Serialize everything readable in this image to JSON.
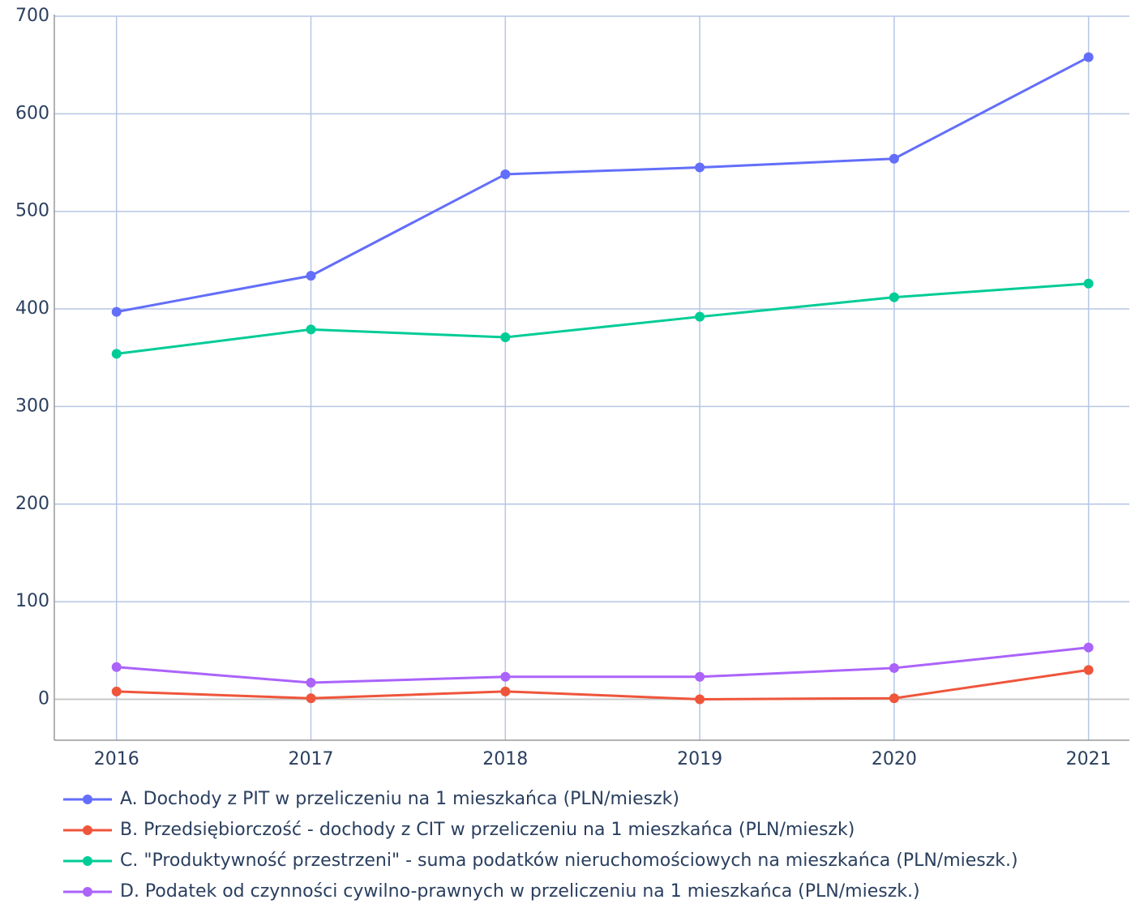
{
  "chart_data": {
    "type": "line",
    "x": [
      2016,
      2017,
      2018,
      2019,
      2020,
      2021
    ],
    "series": [
      {
        "name": "A. Dochody z PIT w przeliczeniu na 1 mieszkańca (PLN/mieszk)",
        "color": "#636efa",
        "values": [
          397,
          434,
          538,
          545,
          554,
          658
        ]
      },
      {
        "name": "B. Przedsiębiorczość - dochody z CIT w przeliczeniu na 1 mieszkańca (PLN/mieszk)",
        "color": "#ef553b",
        "values": [
          8,
          1,
          8,
          0,
          1,
          30
        ]
      },
      {
        "name": "C. \"Produktywność przestrzeni\" - suma podatków nieruchomościowych na mieszkańca (PLN/mieszk.)",
        "color": "#00cc96",
        "values": [
          354,
          379,
          371,
          392,
          412,
          426
        ]
      },
      {
        "name": "D. Podatek od czynności cywilno-prawnych w przeliczeniu na 1 mieszkańca (PLN/mieszk.)",
        "color": "#ab63fa",
        "values": [
          33,
          17,
          23,
          23,
          32,
          53
        ]
      }
    ],
    "xlim": [
      2015.68,
      2021.21
    ],
    "xticks": [
      2016,
      2017,
      2018,
      2019,
      2020,
      2021
    ],
    "ylim": [
      -42,
      700
    ],
    "yticks": [
      0,
      100,
      200,
      300,
      400,
      500,
      600,
      700
    ],
    "grid": true,
    "legend": "bottom"
  }
}
